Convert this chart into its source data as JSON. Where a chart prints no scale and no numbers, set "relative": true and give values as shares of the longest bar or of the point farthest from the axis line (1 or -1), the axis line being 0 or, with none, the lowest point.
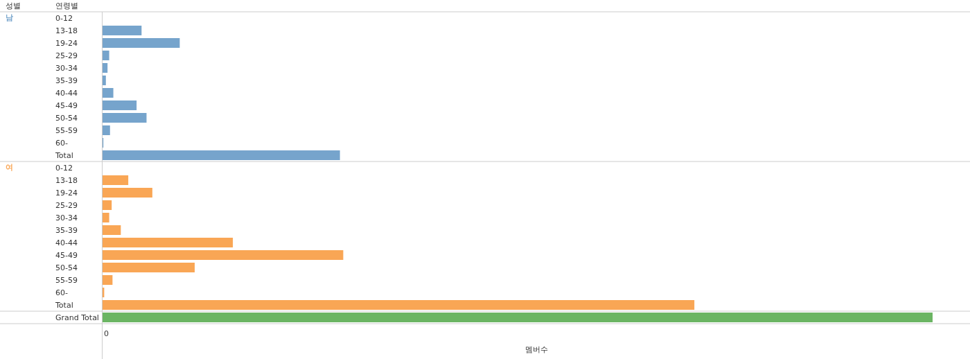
{
  "chart_data": {
    "type": "bar",
    "orientation": "horizontal",
    "relative": true,
    "xlabel": "멤버수",
    "ylabel": "연령별",
    "annotations": [
      "성별",
      "0"
    ],
    "categories": [
      "0-12",
      "13-18",
      "19-24",
      "25-29",
      "30-34",
      "35-39",
      "40-44",
      "45-49",
      "50-54",
      "55-59",
      "60-",
      "Total",
      "0-12",
      "13-18",
      "19-24",
      "25-29",
      "30-34",
      "35-39",
      "40-44",
      "45-49",
      "50-54",
      "55-59",
      "60-",
      "Total",
      "Grand Total"
    ],
    "series": [
      {
        "name": "남",
        "color": "#76a4cc",
        "values": [
          0,
          0.047,
          0.093,
          0.008,
          0.006,
          0.004,
          0.013,
          0.041,
          0.053,
          0.009,
          0.001,
          0.286,
          null,
          null,
          null,
          null,
          null,
          null,
          null,
          null,
          null,
          null,
          null,
          null,
          null
        ]
      },
      {
        "name": "여",
        "color": "#f9a655",
        "values": [
          null,
          null,
          null,
          null,
          null,
          null,
          null,
          null,
          null,
          null,
          null,
          null,
          0,
          0.031,
          0.06,
          0.011,
          0.008,
          0.022,
          0.157,
          0.29,
          0.111,
          0.012,
          0.002,
          0.713,
          null
        ]
      },
      {
        "color": "#6bb563",
        "values": [
          null,
          null,
          null,
          null,
          null,
          null,
          null,
          null,
          null,
          null,
          null,
          null,
          null,
          null,
          null,
          null,
          null,
          null,
          null,
          null,
          null,
          null,
          null,
          null,
          1
        ]
      }
    ]
  }
}
